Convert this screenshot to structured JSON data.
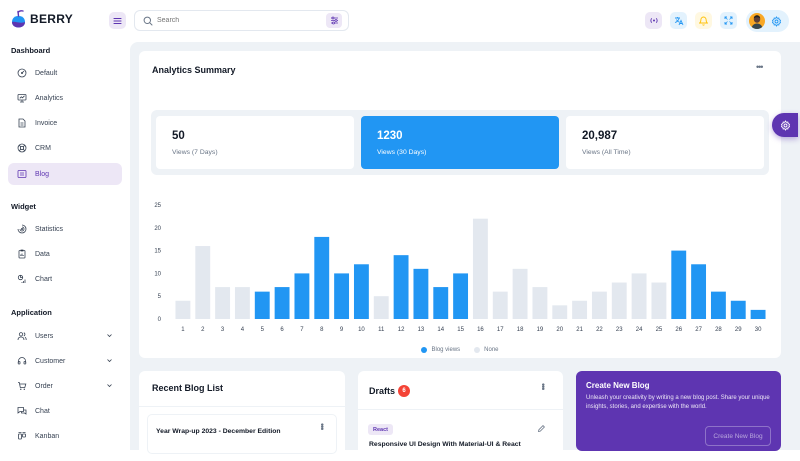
{
  "app": {
    "name": "BERRY"
  },
  "search": {
    "placeholder": "Search"
  },
  "sidebar": {
    "sections": [
      {
        "title": "Dashboard"
      },
      {
        "title": "Widget"
      },
      {
        "title": "Application"
      }
    ],
    "dashboard_items": [
      {
        "label": "Default",
        "icon": "dashboard-icon"
      },
      {
        "label": "Analytics",
        "icon": "device-analytics-icon"
      },
      {
        "label": "Invoice",
        "icon": "invoice-icon"
      },
      {
        "label": "CRM",
        "icon": "lifebuoy-icon"
      },
      {
        "label": "Blog",
        "icon": "article-icon",
        "active": true
      }
    ],
    "widget_items": [
      {
        "label": "Statistics",
        "icon": "chart-arcs-icon"
      },
      {
        "label": "Data",
        "icon": "clipboard-data-icon"
      },
      {
        "label": "Chart",
        "icon": "chart-infographic-icon"
      }
    ],
    "application_items": [
      {
        "label": "Users",
        "icon": "users-icon",
        "expandable": true
      },
      {
        "label": "Customer",
        "icon": "headset-icon",
        "expandable": true
      },
      {
        "label": "Order",
        "icon": "cart-icon",
        "expandable": true
      },
      {
        "label": "Chat",
        "icon": "messages-icon"
      },
      {
        "label": "Kanban",
        "icon": "layout-kanban-icon"
      }
    ]
  },
  "analytics": {
    "title": "Analytics Summary",
    "stats": [
      {
        "value": "50",
        "label": "Views (7 Days)"
      },
      {
        "value": "1230",
        "label": "Views (30 Days)",
        "active": true
      },
      {
        "value": "20,987",
        "label": "Views (All Time)"
      }
    ]
  },
  "chart_data": {
    "type": "bar",
    "categories": [
      "1",
      "2",
      "3",
      "4",
      "5",
      "6",
      "7",
      "8",
      "9",
      "10",
      "11",
      "12",
      "13",
      "14",
      "15",
      "16",
      "17",
      "18",
      "19",
      "20",
      "21",
      "22",
      "23",
      "24",
      "25",
      "26",
      "27",
      "28",
      "29",
      "30"
    ],
    "series": [
      {
        "name": "Blog views",
        "color": "#2196f3",
        "values": [
          null,
          null,
          null,
          null,
          6,
          7,
          10,
          18,
          10,
          12,
          null,
          14,
          11,
          7,
          10,
          null,
          null,
          null,
          null,
          null,
          null,
          null,
          null,
          null,
          null,
          15,
          12,
          6,
          4,
          2
        ]
      },
      {
        "name": "None",
        "color": "#e3e8ef",
        "values": [
          4,
          16,
          7,
          7,
          null,
          null,
          null,
          null,
          null,
          null,
          5,
          null,
          null,
          null,
          null,
          22,
          6,
          11,
          7,
          3,
          4,
          6,
          8,
          10,
          8,
          null,
          null,
          null,
          null,
          null
        ]
      }
    ],
    "yticks": [
      "25",
      "20",
      "15",
      "10",
      "5",
      "0"
    ],
    "ylim": [
      0,
      25
    ],
    "legend_position": "bottom-center",
    "grid": false
  },
  "blog_list": {
    "title": "Recent Blog List",
    "first_item": "Year Wrap-up 2023 - December Edition"
  },
  "drafts": {
    "title": "Drafts",
    "count": "6",
    "tag": "React",
    "item_title": "Responsive UI Design With Material-UI & React"
  },
  "create_blog": {
    "title": "Create New Blog",
    "text": "Unleash your creativity by writing a new blog post. Share your unique insights, stories, and expertise with the world.",
    "button": "Create New Blog"
  },
  "colors": {
    "primary": "#2196f3",
    "secondary": "#5e35b1",
    "secondary_light": "#ede7f6",
    "grey_bar": "#e3e8ef"
  }
}
